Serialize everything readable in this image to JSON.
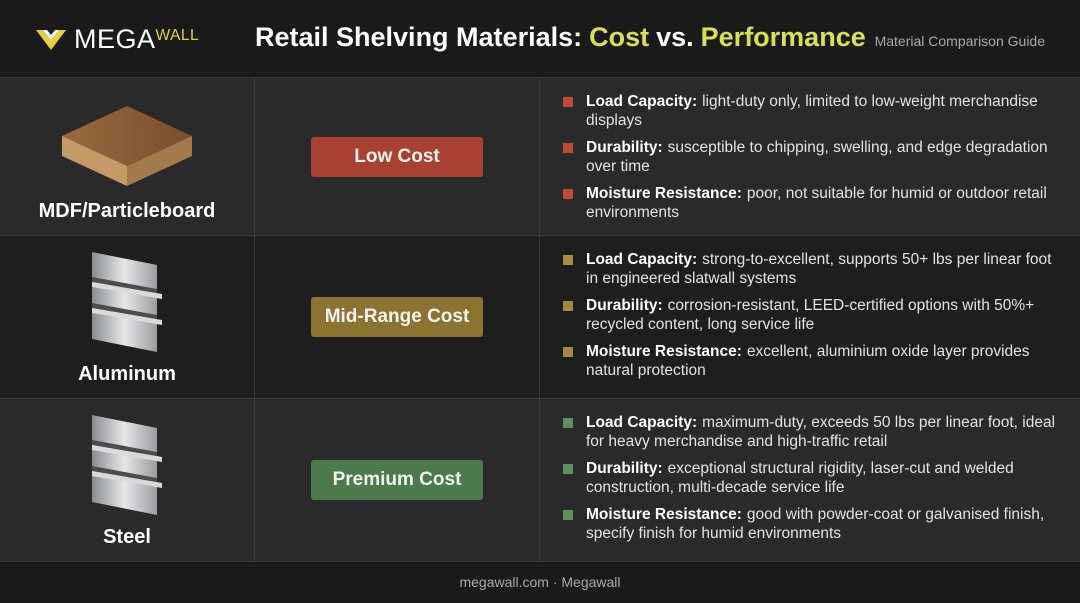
{
  "header": {
    "logo_prefix": "MEGA",
    "logo_suffix": "WALL",
    "title_parts": [
      "Retail Shelving Materials:",
      "Cost",
      "vs.",
      "Performance"
    ],
    "subtitle": "Material Comparison Guide"
  },
  "rows": [
    {
      "material": "MDF/Particleboard",
      "cost": "Low Cost",
      "bullets": [
        {
          "label": "Load Capacity:",
          "text": "light-duty only, limited to low-weight merchandise displays"
        },
        {
          "label": "Durability:",
          "text": "susceptible to chipping, swelling, and edge degradation over time"
        },
        {
          "label": "Moisture Resistance:",
          "text": "poor, not suitable for humid or outdoor retail environments"
        }
      ]
    },
    {
      "material": "Aluminum",
      "cost": "Mid-Range Cost",
      "bullets": [
        {
          "label": "Load Capacity:",
          "text": "strong-to-excellent, supports 50+ lbs per linear foot in engineered slatwall systems"
        },
        {
          "label": "Durability:",
          "text": "corrosion-resistant, LEED-certified options with 50%+ recycled content, long service life"
        },
        {
          "label": "Moisture Resistance:",
          "text": "excellent, aluminium oxide layer provides natural protection"
        }
      ]
    },
    {
      "material": "Steel",
      "cost": "Premium Cost",
      "bullets": [
        {
          "label": "Load Capacity:",
          "text": "maximum-duty, exceeds 50 lbs per linear foot, ideal for heavy merchandise and high-traffic retail"
        },
        {
          "label": "Durability:",
          "text": "exceptional structural rigidity, laser-cut and welded construction, multi-decade service life"
        },
        {
          "label": "Moisture Resistance:",
          "text": "good with powder-coat or galvanised finish, specify finish for humid environments"
        }
      ]
    }
  ],
  "footer": "megawall.com · Megawall"
}
